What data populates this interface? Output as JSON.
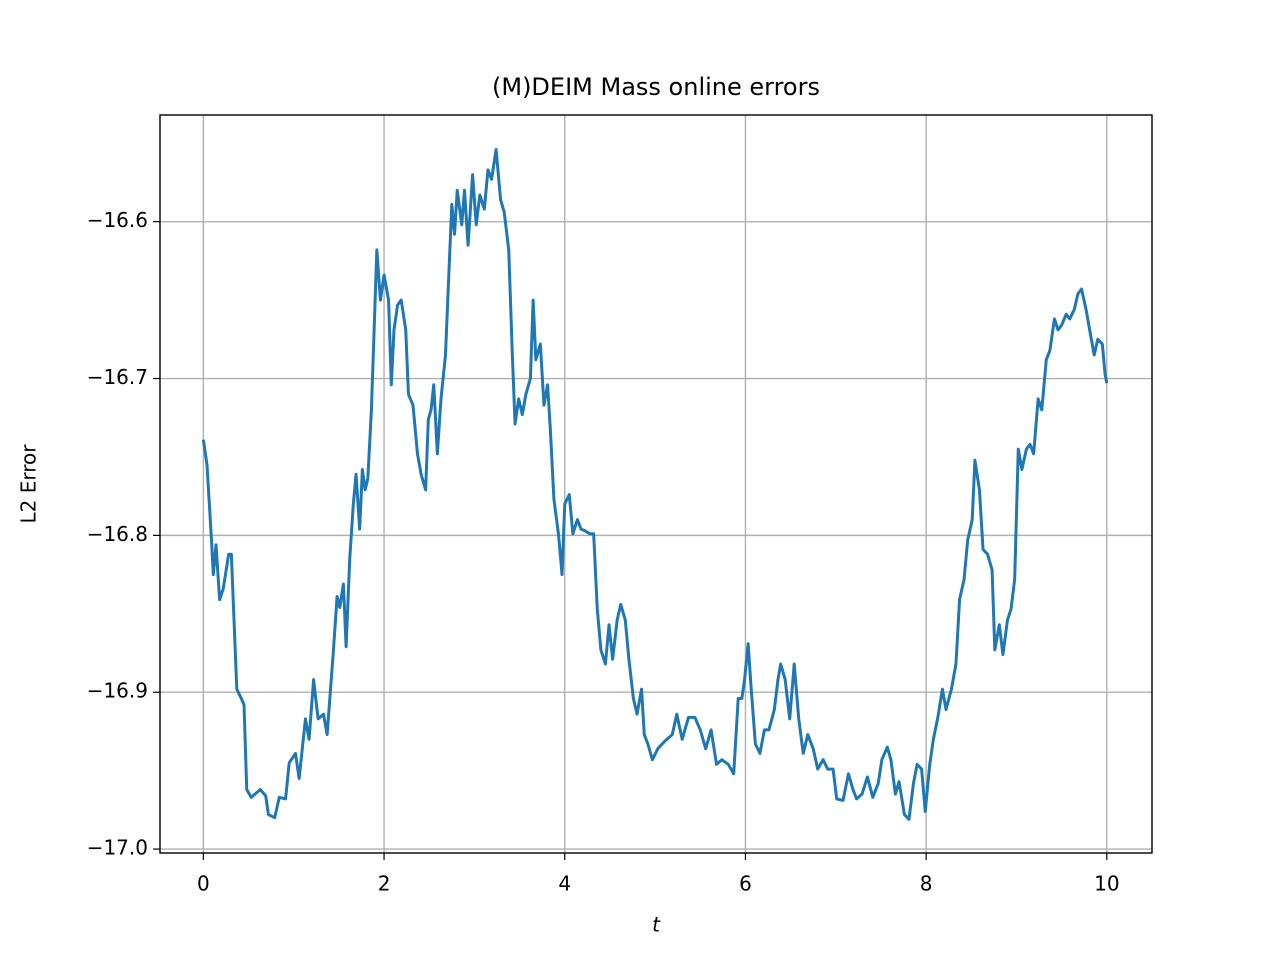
{
  "chart_data": {
    "type": "line",
    "title": "(M)DEIM Mass online errors",
    "x_label": "t",
    "y_label": "L2 Error",
    "xlim": [
      -0.48,
      10.5
    ],
    "ylim": [
      -17.0025,
      -16.532
    ],
    "xticks": [
      0,
      2,
      4,
      6,
      8,
      10
    ],
    "yticks": [
      {
        "value": -17.0,
        "label": "−17.0"
      },
      {
        "value": -16.9,
        "label": "−16.9"
      },
      {
        "value": -16.8,
        "label": "−16.8"
      },
      {
        "value": -16.7,
        "label": "−16.7"
      },
      {
        "value": -16.6,
        "label": "−16.6"
      }
    ],
    "grid": true,
    "x": [
      0.0,
      0.04,
      0.09,
      0.11,
      0.14,
      0.18,
      0.22,
      0.28,
      0.31,
      0.37,
      0.42,
      0.45,
      0.48,
      0.53,
      0.63,
      0.69,
      0.72,
      0.79,
      0.84,
      0.91,
      0.95,
      1.02,
      1.06,
      1.13,
      1.17,
      1.22,
      1.27,
      1.33,
      1.37,
      1.44,
      1.48,
      1.51,
      1.55,
      1.58,
      1.62,
      1.66,
      1.69,
      1.73,
      1.76,
      1.79,
      1.82,
      1.86,
      1.89,
      1.92,
      1.96,
      2.0,
      2.05,
      2.08,
      2.11,
      2.15,
      2.19,
      2.24,
      2.27,
      2.32,
      2.37,
      2.41,
      2.46,
      2.49,
      2.52,
      2.55,
      2.59,
      2.63,
      2.68,
      2.71,
      2.75,
      2.78,
      2.81,
      2.86,
      2.89,
      2.93,
      2.98,
      3.02,
      3.06,
      3.11,
      3.15,
      3.19,
      3.24,
      3.29,
      3.33,
      3.38,
      3.42,
      3.45,
      3.49,
      3.53,
      3.57,
      3.62,
      3.65,
      3.68,
      3.73,
      3.77,
      3.81,
      3.84,
      3.88,
      3.93,
      3.97,
      4.0,
      4.05,
      4.09,
      4.14,
      4.18,
      4.22,
      4.28,
      4.32,
      4.36,
      4.4,
      4.45,
      4.49,
      4.53,
      4.58,
      4.62,
      4.67,
      4.71,
      4.76,
      4.8,
      4.85,
      4.88,
      4.92,
      4.97,
      5.03,
      5.11,
      5.19,
      5.24,
      5.3,
      5.37,
      5.44,
      5.5,
      5.56,
      5.62,
      5.68,
      5.74,
      5.81,
      5.87,
      5.92,
      5.96,
      5.99,
      6.03,
      6.06,
      6.11,
      6.16,
      6.21,
      6.26,
      6.32,
      6.36,
      6.39,
      6.44,
      6.49,
      6.54,
      6.59,
      6.64,
      6.69,
      6.75,
      6.8,
      6.86,
      6.91,
      6.97,
      7.01,
      7.08,
      7.14,
      7.19,
      7.23,
      7.29,
      7.35,
      7.41,
      7.47,
      7.51,
      7.57,
      7.61,
      7.66,
      7.7,
      7.76,
      7.81,
      7.86,
      7.9,
      7.95,
      7.99,
      8.04,
      8.08,
      8.13,
      8.18,
      8.22,
      8.28,
      8.33,
      8.37,
      8.42,
      8.46,
      8.51,
      8.54,
      8.59,
      8.63,
      8.68,
      8.73,
      8.76,
      8.81,
      8.85,
      8.9,
      8.94,
      8.98,
      9.02,
      9.06,
      9.11,
      9.15,
      9.19,
      9.24,
      9.28,
      9.33,
      9.37,
      9.42,
      9.46,
      9.5,
      9.55,
      9.59,
      9.64,
      9.68,
      9.72,
      9.77,
      9.81,
      9.86,
      9.9,
      9.95,
      9.98,
      10.0
    ],
    "series": [
      {
        "color": "#1f77b4",
        "values": [
          -16.739,
          -16.755,
          -16.803,
          -16.825,
          -16.806,
          -16.841,
          -16.834,
          -16.812,
          -16.812,
          -16.898,
          -16.904,
          -16.908,
          -16.962,
          -16.967,
          -16.962,
          -16.966,
          -16.978,
          -16.98,
          -16.967,
          -16.968,
          -16.945,
          -16.939,
          -16.955,
          -16.917,
          -16.93,
          -16.892,
          -16.917,
          -16.914,
          -16.927,
          -16.873,
          -16.839,
          -16.846,
          -16.831,
          -16.871,
          -16.815,
          -16.78,
          -16.761,
          -16.796,
          -16.758,
          -16.771,
          -16.764,
          -16.72,
          -16.669,
          -16.618,
          -16.65,
          -16.634,
          -16.65,
          -16.704,
          -16.669,
          -16.653,
          -16.65,
          -16.669,
          -16.71,
          -16.717,
          -16.748,
          -16.761,
          -16.771,
          -16.726,
          -16.72,
          -16.704,
          -16.748,
          -16.713,
          -16.685,
          -16.643,
          -16.589,
          -16.608,
          -16.58,
          -16.602,
          -16.58,
          -16.615,
          -16.57,
          -16.602,
          -16.583,
          -16.592,
          -16.567,
          -16.573,
          -16.554,
          -16.586,
          -16.594,
          -16.618,
          -16.685,
          -16.729,
          -16.713,
          -16.723,
          -16.71,
          -16.7,
          -16.65,
          -16.688,
          -16.678,
          -16.717,
          -16.704,
          -16.732,
          -16.777,
          -16.799,
          -16.825,
          -16.78,
          -16.774,
          -16.799,
          -16.79,
          -16.796,
          -16.797,
          -16.799,
          -16.799,
          -16.847,
          -16.873,
          -16.882,
          -16.857,
          -16.879,
          -16.854,
          -16.844,
          -16.854,
          -16.879,
          -16.904,
          -16.914,
          -16.898,
          -16.927,
          -16.933,
          -16.943,
          -16.936,
          -16.931,
          -16.927,
          -16.914,
          -16.93,
          -16.916,
          -16.916,
          -16.924,
          -16.936,
          -16.924,
          -16.946,
          -16.943,
          -16.946,
          -16.952,
          -16.904,
          -16.904,
          -16.892,
          -16.869,
          -16.895,
          -16.933,
          -16.939,
          -16.924,
          -16.924,
          -16.911,
          -16.892,
          -16.882,
          -16.892,
          -16.917,
          -16.882,
          -16.917,
          -16.939,
          -16.927,
          -16.936,
          -16.949,
          -16.943,
          -16.949,
          -16.949,
          -16.968,
          -16.969,
          -16.952,
          -16.962,
          -16.968,
          -16.965,
          -16.954,
          -16.967,
          -16.958,
          -16.943,
          -16.935,
          -16.943,
          -16.965,
          -16.957,
          -16.978,
          -16.981,
          -16.958,
          -16.946,
          -16.949,
          -16.976,
          -16.946,
          -16.93,
          -16.916,
          -16.898,
          -16.911,
          -16.898,
          -16.882,
          -16.841,
          -16.828,
          -16.803,
          -16.79,
          -16.752,
          -16.771,
          -16.809,
          -16.812,
          -16.822,
          -16.873,
          -16.857,
          -16.876,
          -16.854,
          -16.847,
          -16.828,
          -16.745,
          -16.758,
          -16.745,
          -16.742,
          -16.748,
          -16.713,
          -16.72,
          -16.688,
          -16.682,
          -16.662,
          -16.669,
          -16.666,
          -16.659,
          -16.662,
          -16.656,
          -16.646,
          -16.643,
          -16.656,
          -16.669,
          -16.685,
          -16.675,
          -16.678,
          -16.697,
          -16.703
        ]
      }
    ]
  }
}
